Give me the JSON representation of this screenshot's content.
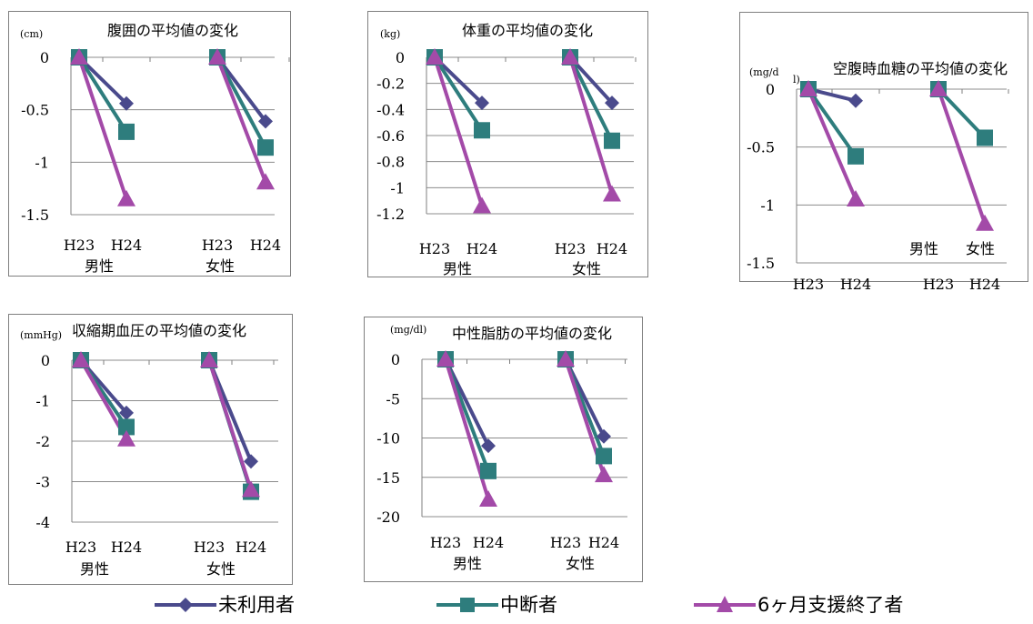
{
  "colors": {
    "series": [
      "#4a4a8c",
      "#2e7d7d",
      "#a34aa8"
    ],
    "grid": "#8c8c8c",
    "axis": "#7f7f7f"
  },
  "legend": {
    "items": [
      {
        "label": "未利用者",
        "marker": "diamond"
      },
      {
        "label": "中断者",
        "marker": "square"
      },
      {
        "label": "6ヶ月支援終了者",
        "marker": "triangle"
      }
    ]
  },
  "chart_data": [
    {
      "type": "line",
      "title": "腹囲の平均値の変化",
      "unit": "(cm)",
      "ylim": [
        -1.5,
        0
      ],
      "yticks": [
        0,
        -0.5,
        -1,
        -1.5
      ],
      "tick_labels": [
        "0",
        "-0.5",
        "-1",
        "-1.5"
      ],
      "groups": [
        {
          "name": "男性",
          "x": [
            "H23",
            "H24"
          ]
        },
        {
          "name": "女性",
          "x": [
            "H23",
            "H24"
          ]
        }
      ],
      "series": [
        {
          "name": "未利用者",
          "values": [
            [
              0,
              -0.44
            ],
            [
              0,
              -0.61
            ]
          ]
        },
        {
          "name": "中断者",
          "values": [
            [
              0,
              -0.71
            ],
            [
              0,
              -0.86
            ]
          ]
        },
        {
          "name": "6ヶ月支援終了者",
          "values": [
            [
              0,
              -1.35
            ],
            [
              0,
              -1.19
            ]
          ]
        }
      ]
    },
    {
      "type": "line",
      "title": "体重の平均値の変化",
      "unit": "(kg)",
      "ylim": [
        -1.2,
        0
      ],
      "yticks": [
        0,
        -0.2,
        -0.4,
        -0.6,
        -0.8,
        -1,
        -1.2
      ],
      "tick_labels": [
        "0",
        "-0.2",
        "-0.4",
        "-0.6",
        "-0.8",
        "-1",
        "-1.2"
      ],
      "groups": [
        {
          "name": "男性",
          "x": [
            "H23",
            "H24"
          ]
        },
        {
          "name": "女性",
          "x": [
            "H23",
            "H24"
          ]
        }
      ],
      "series": [
        {
          "name": "未利用者",
          "values": [
            [
              0,
              -0.35
            ],
            [
              0,
              -0.35
            ]
          ]
        },
        {
          "name": "中断者",
          "values": [
            [
              0,
              -0.56
            ],
            [
              0,
              -0.64
            ]
          ]
        },
        {
          "name": "6ヶ月支援終了者",
          "values": [
            [
              0,
              -1.14
            ],
            [
              0,
              -1.05
            ]
          ]
        }
      ]
    },
    {
      "type": "line",
      "title": "空腹時血糖の平均値の変化",
      "unit": "(mg/d",
      "unit_suffix": "l)",
      "ylim": [
        -1.5,
        0
      ],
      "yticks": [
        0,
        -0.5,
        -1,
        -1.5
      ],
      "tick_labels": [
        "0",
        "-0.5",
        "-1",
        "-1.5"
      ],
      "group_labels_inside": true,
      "groups": [
        {
          "name": "男性",
          "x": [
            "H23",
            "H24"
          ]
        },
        {
          "name": "女性",
          "x": [
            "H23",
            "H24"
          ]
        }
      ],
      "series": [
        {
          "name": "未利用者",
          "values": [
            [
              0,
              -0.1
            ],
            null
          ]
        },
        {
          "name": "中断者",
          "values": [
            [
              0,
              -0.58
            ],
            [
              0,
              -0.42
            ]
          ]
        },
        {
          "name": "6ヶ月支援終了者",
          "values": [
            [
              0,
              -0.95
            ],
            [
              0,
              -1.16
            ]
          ]
        }
      ]
    },
    {
      "type": "line",
      "title": "収縮期血圧の平均値の変化",
      "unit": "(mmHg)",
      "ylim": [
        -4,
        0
      ],
      "yticks": [
        0,
        -1,
        -2,
        -3,
        -4
      ],
      "tick_labels": [
        "0",
        "-1",
        "-2",
        "-3",
        "-4"
      ],
      "groups": [
        {
          "name": "男性",
          "x": [
            "H23",
            "H24"
          ]
        },
        {
          "name": "女性",
          "x": [
            "H23",
            "H24"
          ]
        }
      ],
      "series": [
        {
          "name": "未利用者",
          "values": [
            [
              0,
              -1.3
            ],
            [
              0,
              -2.5
            ]
          ]
        },
        {
          "name": "中断者",
          "values": [
            [
              0,
              -1.65
            ],
            [
              0,
              -3.25
            ]
          ]
        },
        {
          "name": "6ヶ月支援終了者",
          "values": [
            [
              0,
              -1.95
            ],
            [
              0,
              -3.2
            ]
          ]
        }
      ]
    },
    {
      "type": "line",
      "title": "中性脂肪の平均値の変化",
      "unit": "(mg/dl)",
      "ylim": [
        -20,
        0
      ],
      "yticks": [
        0,
        -5,
        -10,
        -15,
        -20
      ],
      "tick_labels": [
        "0",
        "-5",
        "-10",
        "-15",
        "-20"
      ],
      "groups": [
        {
          "name": "男性",
          "x": [
            "H23",
            "H24"
          ]
        },
        {
          "name": "女性",
          "x": [
            "H23",
            "H24"
          ]
        }
      ],
      "series": [
        {
          "name": "未利用者",
          "values": [
            [
              0,
              -11
            ],
            [
              0,
              -9.8
            ]
          ]
        },
        {
          "name": "中断者",
          "values": [
            [
              0,
              -14.2
            ],
            [
              0,
              -12.3
            ]
          ]
        },
        {
          "name": "6ヶ月支援終了者",
          "values": [
            [
              0,
              -17.8
            ],
            [
              0,
              -14.7
            ]
          ]
        }
      ]
    }
  ]
}
